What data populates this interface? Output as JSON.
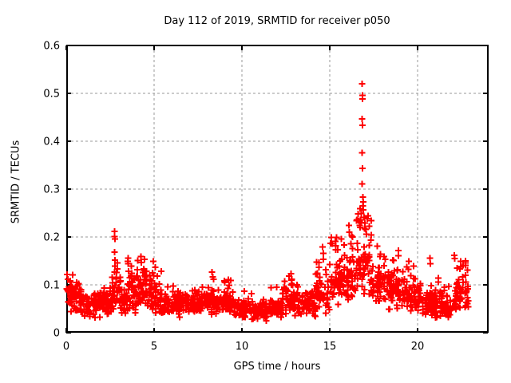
{
  "page": {
    "background": "#ffffff"
  },
  "chart_data": {
    "type": "scatter",
    "title": "Day 112 of 2019, SRMTID for receiver p050",
    "xlabel": "GPS time / hours",
    "ylabel": "SRMTID / TECUs",
    "xlim": [
      0,
      24
    ],
    "ylim": [
      0,
      0.6
    ],
    "xticks": {
      "values": [
        0,
        5,
        10,
        15,
        20
      ],
      "labels": [
        "0",
        "5",
        "10",
        "15",
        "20"
      ]
    },
    "yticks": {
      "values": [
        0,
        0.1,
        0.2,
        0.3,
        0.4,
        0.5,
        0.6
      ],
      "labels": [
        "0",
        "0.1",
        "0.2",
        "0.3",
        "0.4",
        "0.5",
        "0.6"
      ]
    },
    "grid": {
      "show": true,
      "color": "#999999",
      "dash": [
        3,
        3
      ]
    },
    "frame_color": "#000000",
    "marker": {
      "shape": "plus",
      "color": "#ff0000",
      "size": 8,
      "stroke_width": 2
    },
    "legend": null,
    "series": [
      {
        "name": "SRMTID",
        "color": "#ff0000",
        "seed": 20190112,
        "envelope_segments": [
          [
            0.0,
            0.5,
            34,
            0.075,
            0.038,
            0.1,
            0.125
          ],
          [
            0.5,
            1.0,
            34,
            0.065,
            0.032,
            0.08,
            0.11
          ],
          [
            1.0,
            2.0,
            66,
            0.057,
            0.027,
            0.07,
            0.105
          ],
          [
            2.0,
            2.6,
            40,
            0.06,
            0.03,
            0.07,
            0.11
          ],
          [
            2.6,
            3.0,
            28,
            0.07,
            0.038,
            0.12,
            0.13
          ],
          [
            3.0,
            3.4,
            27,
            0.068,
            0.034,
            0.1,
            0.12
          ],
          [
            3.4,
            4.7,
            90,
            0.085,
            0.048,
            0.14,
            0.15
          ],
          [
            4.7,
            5.3,
            40,
            0.075,
            0.04,
            0.1,
            0.14
          ],
          [
            5.3,
            6.5,
            78,
            0.058,
            0.028,
            0.07,
            0.1
          ],
          [
            6.5,
            8.0,
            98,
            0.06,
            0.03,
            0.08,
            0.108
          ],
          [
            8.0,
            9.5,
            98,
            0.065,
            0.032,
            0.09,
            0.118
          ],
          [
            9.5,
            10.5,
            64,
            0.05,
            0.024,
            0.06,
            0.09
          ],
          [
            10.5,
            11.5,
            64,
            0.046,
            0.022,
            0.05,
            0.082
          ],
          [
            11.5,
            12.3,
            52,
            0.052,
            0.026,
            0.07,
            0.098
          ],
          [
            12.3,
            13.2,
            58,
            0.066,
            0.034,
            0.1,
            0.118
          ],
          [
            13.2,
            14.2,
            64,
            0.06,
            0.03,
            0.08,
            0.102
          ],
          [
            14.2,
            15.0,
            54,
            0.082,
            0.046,
            0.14,
            0.165
          ],
          [
            15.0,
            15.8,
            54,
            0.1,
            0.052,
            0.16,
            0.2
          ],
          [
            15.8,
            16.5,
            48,
            0.11,
            0.056,
            0.18,
            0.22
          ],
          [
            16.5,
            17.4,
            62,
            0.13,
            0.068,
            0.2,
            0.26
          ],
          [
            17.4,
            18.2,
            54,
            0.1,
            0.05,
            0.14,
            0.17
          ],
          [
            18.2,
            19.2,
            66,
            0.088,
            0.048,
            0.12,
            0.16
          ],
          [
            19.2,
            20.2,
            66,
            0.078,
            0.044,
            0.1,
            0.14
          ],
          [
            20.2,
            21.3,
            72,
            0.062,
            0.034,
            0.08,
            0.115
          ],
          [
            21.3,
            22.2,
            58,
            0.054,
            0.028,
            0.07,
            0.1
          ],
          [
            22.2,
            22.9,
            46,
            0.078,
            0.042,
            0.12,
            0.15
          ]
        ],
        "peak_points": [
          [
            0.05,
            0.122
          ],
          [
            0.1,
            0.112
          ],
          [
            2.76,
            0.212
          ],
          [
            2.76,
            0.201
          ],
          [
            2.78,
            0.196
          ],
          [
            2.76,
            0.168
          ],
          [
            2.77,
            0.152
          ],
          [
            2.78,
            0.139
          ],
          [
            2.74,
            0.127
          ],
          [
            2.9,
            0.146
          ],
          [
            2.92,
            0.133
          ],
          [
            3.52,
            0.156
          ],
          [
            3.53,
            0.144
          ],
          [
            3.71,
            0.139
          ],
          [
            4.06,
            0.151
          ],
          [
            4.25,
            0.159
          ],
          [
            4.27,
            0.147
          ],
          [
            4.46,
            0.153
          ],
          [
            4.95,
            0.149
          ],
          [
            5.06,
            0.137
          ],
          [
            5.42,
            0.128
          ],
          [
            8.3,
            0.127
          ],
          [
            8.33,
            0.117
          ],
          [
            12.8,
            0.123
          ],
          [
            12.84,
            0.112
          ],
          [
            14.6,
            0.179
          ],
          [
            14.63,
            0.166
          ],
          [
            15.1,
            0.199
          ],
          [
            15.13,
            0.186
          ],
          [
            15.32,
            0.191
          ],
          [
            15.46,
            0.173
          ],
          [
            16.1,
            0.224
          ],
          [
            16.12,
            0.21
          ],
          [
            16.85,
            0.52
          ],
          [
            16.86,
            0.496
          ],
          [
            16.87,
            0.488
          ],
          [
            16.84,
            0.447
          ],
          [
            16.86,
            0.433
          ],
          [
            16.85,
            0.376
          ],
          [
            16.86,
            0.343
          ],
          [
            16.85,
            0.311
          ],
          [
            16.88,
            0.283
          ],
          [
            16.9,
            0.273
          ],
          [
            16.89,
            0.265
          ],
          [
            16.92,
            0.257
          ],
          [
            16.8,
            0.249
          ],
          [
            16.95,
            0.241
          ],
          [
            16.75,
            0.236
          ],
          [
            17.0,
            0.229
          ],
          [
            16.7,
            0.224
          ],
          [
            17.05,
            0.216
          ],
          [
            17.1,
            0.206
          ],
          [
            16.62,
            0.248
          ],
          [
            16.64,
            0.234
          ],
          [
            17.7,
            0.181
          ],
          [
            18.9,
            0.172
          ],
          [
            18.92,
            0.161
          ],
          [
            18.6,
            0.152
          ],
          [
            19.5,
            0.149
          ],
          [
            20.7,
            0.156
          ],
          [
            20.72,
            0.144
          ],
          [
            22.1,
            0.162
          ],
          [
            22.12,
            0.155
          ],
          [
            22.45,
            0.149
          ],
          [
            22.47,
            0.138
          ],
          [
            22.6,
            0.141
          ],
          [
            22.85,
            0.131
          ]
        ]
      }
    ]
  }
}
